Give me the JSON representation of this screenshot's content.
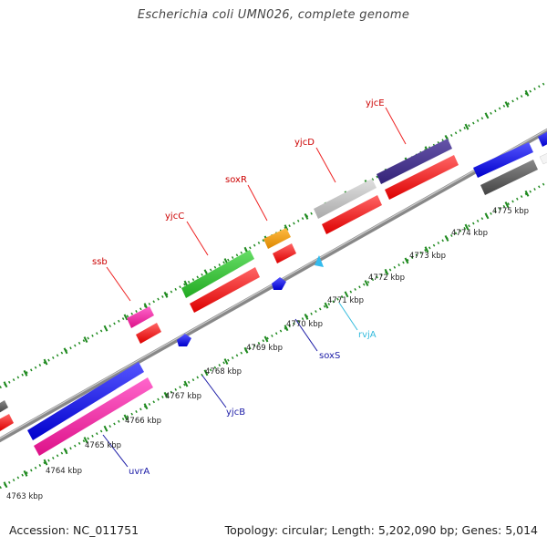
{
  "title": "Escherichia coli UMN026, complete genome",
  "footer": {
    "accession": "Accession: NC_011751",
    "summary": "Topology: circular; Length: 5,202,090 bp; Genes: 5,014"
  },
  "scale_labels": [
    "4763 kbp",
    "4764 kbp",
    "4765 kbp",
    "4766 kbp",
    "4767 kbp",
    "4768 kbp",
    "4769 kbp",
    "4770 kbp",
    "4771 kbp",
    "4772 kbp",
    "4773 kbp",
    "4774 kbp",
    "4775 kbp"
  ],
  "genes": {
    "forward": [
      {
        "name": "ssb",
        "label_color": "#cc0000"
      },
      {
        "name": "yjcC",
        "label_color": "#cc0000"
      },
      {
        "name": "soxR",
        "label_color": "#cc0000"
      },
      {
        "name": "yjcD",
        "label_color": "#cc0000"
      },
      {
        "name": "yjcE",
        "label_color": "#cc0000"
      }
    ],
    "reverse": [
      {
        "name": "uvrA",
        "label_color": "#1a1aa6"
      },
      {
        "name": "yjcB",
        "label_color": "#1a1aa6"
      },
      {
        "name": "soxS",
        "label_color": "#1a1aa6"
      },
      {
        "name": "rvjA",
        "label_color": "#33bbdd"
      }
    ]
  },
  "colors": {
    "backbone": "#8a8a8a",
    "tick": "#1f8a1f",
    "cds_red": "#ee1111",
    "blue": "#1111ee",
    "pink": "#ee1199",
    "green": "#33bb33",
    "grey": "#bbbbbb",
    "navy": "#443388",
    "orange": "#ee9911",
    "dark_grey": "#666666",
    "cyan": "#33bbee"
  }
}
